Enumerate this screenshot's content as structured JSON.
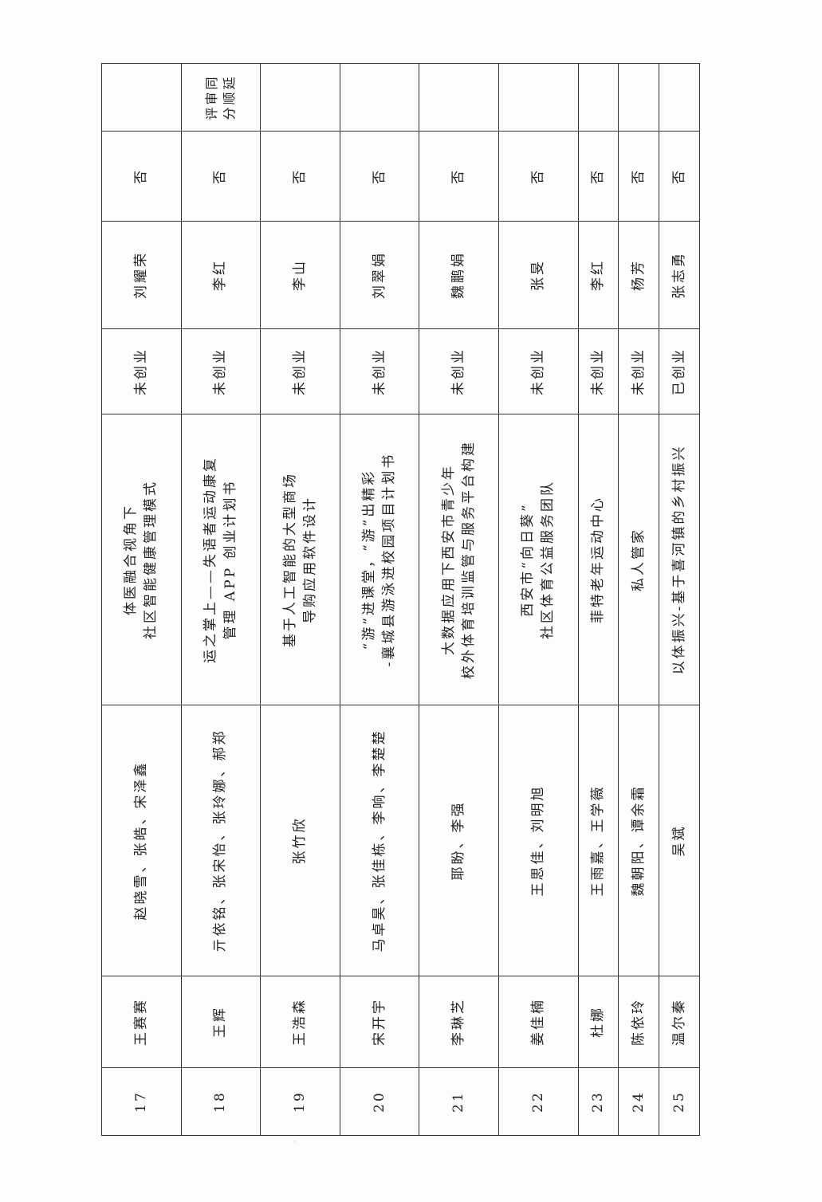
{
  "table": {
    "rows": [
      {
        "no": "17",
        "leader": "王赛赛",
        "members": "赵晓雪、张皓、宋泽鑫",
        "project": "体医融合视角下\n社区智能健康管理模式",
        "status": "未创业",
        "advisor": "刘耀荣",
        "flag": "否",
        "remark": ""
      },
      {
        "no": "18",
        "leader": "王辉",
        "members": "亓依铭、张宋怡、张玲娜、郝郑",
        "project": "运之掌上——失语者运动康复\n管理 APP 创业计划书",
        "status": "未创业",
        "advisor": "李红",
        "flag": "否",
        "remark": "评审同\n分顺延"
      },
      {
        "no": "19",
        "leader": "王浩森",
        "members": "张竹欣",
        "project": "基于人工智能的大型商场\n导购应用软件设计",
        "status": "未创业",
        "advisor": "李山",
        "flag": "否",
        "remark": ""
      },
      {
        "no": "20",
        "leader": "宋开宇",
        "members": "马卓昊、张佳栋、李响、李楚楚",
        "project": "“游”进课堂，“游”出精彩\n-襄城县游泳进校园项目计划书",
        "status": "未创业",
        "advisor": "刘翠娟",
        "flag": "否",
        "remark": ""
      },
      {
        "no": "21",
        "leader": "李琳芝",
        "members": "耶盼、李强",
        "project": "大数据应用下西安市青少年\n校外体育培训监管与服务平台构建",
        "status": "未创业",
        "advisor": "魏鹏娟",
        "flag": "否",
        "remark": ""
      },
      {
        "no": "22",
        "leader": "姜佳楠",
        "members": "王思佳、刘明旭",
        "project": "西安市“向日葵”\n社区体育公益服务团队",
        "status": "未创业",
        "advisor": "张旻",
        "flag": "否",
        "remark": ""
      },
      {
        "no": "23",
        "leader": "杜娜",
        "members": "王雨嘉、王学薇",
        "project": "菲特老年运动中心",
        "status": "未创业",
        "advisor": "李红",
        "flag": "否",
        "remark": ""
      },
      {
        "no": "24",
        "leader": "陈依玲",
        "members": "魏朝阳、谭余霜",
        "project": "私人管家",
        "status": "未创业",
        "advisor": "杨芳",
        "flag": "否",
        "remark": ""
      },
      {
        "no": "25",
        "leader": "温尔秦",
        "members": "吴斌",
        "project": "以体振兴-基于喜河镇的乡村振兴",
        "status": "已创业",
        "advisor": "张志勇",
        "flag": "否",
        "remark": ""
      }
    ]
  }
}
